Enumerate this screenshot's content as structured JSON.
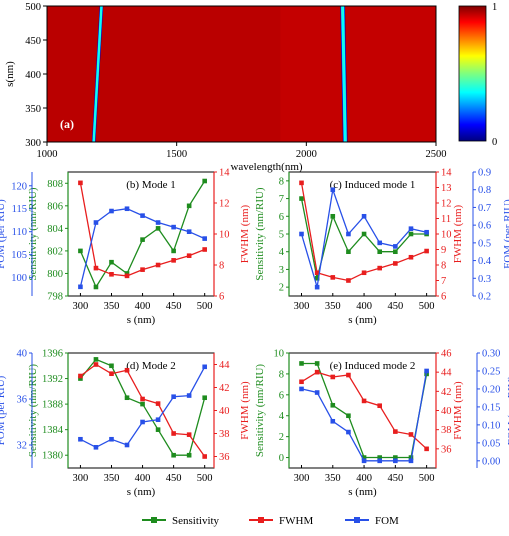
{
  "colors": {
    "sensitivity": "#1e8c1e",
    "fwhm": "#e81e1e",
    "fom": "#2850e8",
    "axis": "#000000"
  },
  "legend": [
    "Sensitivity",
    "FWHM",
    "FOM"
  ],
  "chart_data": [
    {
      "type": "heatmap",
      "panel_label": "(a)",
      "xlabel": "wavelength(nm)",
      "ylabel": "s(nm)",
      "xlim": [
        1000,
        2500
      ],
      "ylim": [
        300,
        500
      ],
      "xticks": [
        1000,
        1500,
        2000,
        2500
      ],
      "yticks": [
        300,
        350,
        400,
        450,
        500
      ],
      "colorbar": {
        "ticks": [
          0,
          1
        ],
        "tick_labels": [
          "0",
          "1"
        ]
      },
      "dips": [
        {
          "name": "mode-1",
          "wavelength_at_s300": 1180,
          "wavelength_at_s500": 1210,
          "width_nm": 14
        },
        {
          "name": "mode-2",
          "wavelength_at_s300": 2150,
          "wavelength_at_s500": 2140,
          "width_nm": 18
        }
      ]
    },
    {
      "type": "line",
      "title": "(b) Mode 1",
      "x": [
        300,
        325,
        350,
        375,
        400,
        425,
        450,
        475,
        500
      ],
      "xlabel": "s (nm)",
      "xlim": [
        280,
        515
      ],
      "xticks": [
        300,
        350,
        400,
        450,
        500
      ],
      "axes": {
        "left": {
          "label": "FOM (per RIU)",
          "lim": [
            96,
            123
          ],
          "ticks": [
            100,
            105,
            110,
            115,
            120
          ],
          "color": "fom"
        },
        "inner": {
          "label": "Sensitivity (nm/RIU)",
          "lim": [
            798,
            809
          ],
          "ticks": [
            798,
            800,
            802,
            804,
            806,
            808
          ],
          "color": "sensitivity"
        },
        "right": {
          "label": "FWHM (nm)",
          "lim": [
            6,
            14
          ],
          "ticks": [
            6,
            8,
            10,
            12,
            14
          ],
          "color": "fwhm"
        }
      },
      "series": [
        {
          "name": "Sensitivity",
          "axis": "inner",
          "values": [
            802,
            798.8,
            801,
            800,
            803,
            804,
            802,
            806,
            808.2
          ]
        },
        {
          "name": "FWHM",
          "axis": "right",
          "values": [
            13.3,
            7.8,
            7.4,
            7.3,
            7.7,
            8.0,
            8.3,
            8.6,
            9.0
          ]
        },
        {
          "name": "FOM",
          "axis": "left",
          "values": [
            98,
            112,
            114.5,
            115,
            113.5,
            112,
            111,
            110,
            108.5
          ]
        }
      ]
    },
    {
      "type": "line",
      "title": "(c) Induced mode 1",
      "x": [
        300,
        325,
        350,
        375,
        400,
        425,
        450,
        475,
        500
      ],
      "xlabel": "s (nm)",
      "xlim": [
        280,
        515
      ],
      "xticks": [
        300,
        350,
        400,
        450,
        500
      ],
      "axes": {
        "left": {
          "label": "Sensitivity (nm/RIU)",
          "lim": [
            1.5,
            8.5
          ],
          "ticks": [
            2,
            3,
            4,
            5,
            6,
            7,
            8
          ],
          "color": "sensitivity"
        },
        "inner": {
          "label": "FWHM (nm)",
          "lim": [
            6,
            14
          ],
          "ticks": [
            6,
            7,
            8,
            9,
            10,
            11,
            12,
            13,
            14
          ],
          "color": "fwhm"
        },
        "right": {
          "label": "FOM (per RIU)",
          "lim": [
            0.2,
            0.9
          ],
          "ticks": [
            0.2,
            0.3,
            0.4,
            0.5,
            0.6,
            0.7,
            0.8,
            0.9
          ],
          "tick_labels": [
            "0.2",
            "0.3",
            "0.4",
            "0.5",
            "0.6",
            "0.7",
            "0.8",
            "0.9"
          ],
          "color": "fom"
        }
      },
      "series": [
        {
          "name": "Sensitivity",
          "axis": "left",
          "values": [
            7,
            2.5,
            6,
            4,
            5,
            4,
            4,
            5,
            5
          ]
        },
        {
          "name": "FWHM",
          "axis": "inner",
          "values": [
            13.3,
            7.5,
            7.2,
            7.0,
            7.5,
            7.8,
            8.1,
            8.5,
            8.9
          ]
        },
        {
          "name": "FOM",
          "axis": "right",
          "values": [
            0.55,
            0.25,
            0.8,
            0.55,
            0.65,
            0.5,
            0.48,
            0.58,
            0.56
          ]
        }
      ]
    },
    {
      "type": "line",
      "title": "(d) Mode 2",
      "x": [
        300,
        325,
        350,
        375,
        400,
        425,
        450,
        475,
        500
      ],
      "xlabel": "s (nm)",
      "xlim": [
        280,
        515
      ],
      "xticks": [
        300,
        350,
        400,
        450,
        500
      ],
      "axes": {
        "left": {
          "label": "FOM (per RIU)",
          "lim": [
            30,
            40
          ],
          "ticks": [
            32,
            36,
            40
          ],
          "color": "fom"
        },
        "inner": {
          "label": "Sensitivity (nm/RIU)",
          "lim": [
            1378,
            1396
          ],
          "ticks": [
            1380,
            1384,
            1388,
            1392,
            1396
          ],
          "color": "sensitivity"
        },
        "right": {
          "label": "FWHM (nm)",
          "lim": [
            35,
            45
          ],
          "ticks": [
            36,
            38,
            40,
            42,
            44
          ],
          "color": "fwhm"
        }
      },
      "series": [
        {
          "name": "Sensitivity",
          "axis": "inner",
          "values": [
            1392,
            1395,
            1394,
            1389,
            1388,
            1384,
            1380,
            1380,
            1389
          ]
        },
        {
          "name": "FWHM",
          "axis": "right",
          "values": [
            43,
            44,
            43.2,
            43.5,
            41,
            40.6,
            38,
            37.9,
            36
          ]
        },
        {
          "name": "FOM",
          "axis": "left",
          "values": [
            32.5,
            31.8,
            32.5,
            32,
            34,
            34.2,
            36.2,
            36.3,
            38.8
          ]
        }
      ]
    },
    {
      "type": "line",
      "title": "(e) Induced mode 2",
      "x": [
        300,
        325,
        350,
        375,
        400,
        425,
        450,
        475,
        500
      ],
      "xlabel": "s (nm)",
      "xlim": [
        280,
        515
      ],
      "xticks": [
        300,
        350,
        400,
        450,
        500
      ],
      "axes": {
        "left": {
          "label": "Sensitivity (nm/RIU)",
          "lim": [
            -1,
            10
          ],
          "ticks": [
            0,
            2,
            4,
            6,
            8,
            10
          ],
          "color": "sensitivity"
        },
        "inner": {
          "label": "FWHM (nm)",
          "lim": [
            34,
            46
          ],
          "ticks": [
            36,
            38,
            40,
            42,
            44,
            46
          ],
          "color": "fwhm"
        },
        "right": {
          "label": "FOM (per RIU)",
          "lim": [
            -0.02,
            0.3
          ],
          "ticks": [
            0,
            0.05,
            0.1,
            0.15,
            0.2,
            0.25,
            0.3
          ],
          "tick_labels": [
            "0.00",
            "0.05",
            "0.10",
            "0.15",
            "0.20",
            "0.25",
            "0.30"
          ],
          "color": "fom"
        }
      },
      "series": [
        {
          "name": "Sensitivity",
          "axis": "left",
          "values": [
            9,
            9,
            5,
            4,
            0,
            0,
            0,
            0,
            8
          ]
        },
        {
          "name": "FWHM",
          "axis": "inner",
          "values": [
            43,
            44,
            43.5,
            43.7,
            41,
            40.5,
            37.8,
            37.5,
            36
          ]
        },
        {
          "name": "FOM",
          "axis": "right",
          "values": [
            0.2,
            0.19,
            0.11,
            0.08,
            0,
            0,
            0,
            0,
            0.25
          ]
        }
      ]
    }
  ]
}
